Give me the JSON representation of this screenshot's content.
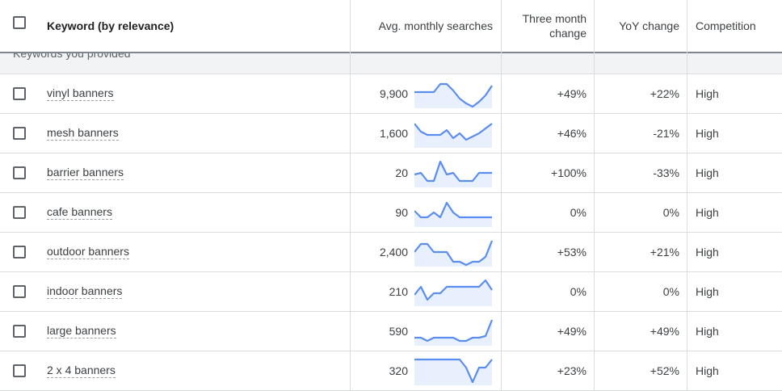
{
  "columns": {
    "keyword": "Keyword (by relevance)",
    "avg": "Avg. monthly searches",
    "three_month_line1": "Three month",
    "three_month_line2": "change",
    "yoy": "YoY change",
    "competition": "Competition"
  },
  "section_label": "Keywords you provided",
  "colors": {
    "spark_line": "#5b8def",
    "spark_fill": "#e8f0fe",
    "divider": "#dadce0"
  },
  "rows": [
    {
      "keyword": "vinyl banners",
      "avg": "9,900",
      "three_month": "+49%",
      "yoy": "+22%",
      "competition": "High",
      "trend": [
        7,
        7,
        7,
        7,
        2,
        2,
        6,
        11,
        14,
        16,
        13,
        9,
        3
      ]
    },
    {
      "keyword": "mesh banners",
      "avg": "1,600",
      "three_month": "+46%",
      "yoy": "-21%",
      "competition": "High",
      "trend": [
        2,
        7,
        9,
        9,
        9,
        6,
        11,
        8,
        12,
        10,
        8,
        5,
        2
      ]
    },
    {
      "keyword": "barrier banners",
      "avg": "20",
      "three_month": "+100%",
      "yoy": "-33%",
      "competition": "High",
      "trend": [
        9,
        8,
        13,
        13,
        1,
        9,
        8,
        13,
        13,
        13,
        8,
        8,
        8
      ]
    },
    {
      "keyword": "cafe banners",
      "avg": "90",
      "three_month": "0%",
      "yoy": "0%",
      "competition": "High",
      "trend": [
        7,
        11,
        11,
        8,
        11,
        2,
        8,
        11,
        11,
        11,
        11,
        11,
        11
      ]
    },
    {
      "keyword": "outdoor banners",
      "avg": "2,400",
      "three_month": "+53%",
      "yoy": "+21%",
      "competition": "High",
      "trend": [
        8,
        3,
        3,
        8,
        8,
        8,
        14,
        14,
        16,
        14,
        14,
        11,
        1
      ]
    },
    {
      "keyword": "indoor banners",
      "avg": "210",
      "three_month": "0%",
      "yoy": "0%",
      "competition": "High",
      "trend": [
        10,
        5,
        13,
        9,
        9,
        5,
        5,
        5,
        5,
        5,
        5,
        1,
        7
      ]
    },
    {
      "keyword": "large banners",
      "avg": "590",
      "three_month": "+49%",
      "yoy": "+49%",
      "competition": "High",
      "trend": [
        12,
        12,
        14,
        12,
        12,
        12,
        12,
        14,
        14,
        12,
        12,
        11,
        1
      ]
    },
    {
      "keyword": "2 x 4 banners",
      "avg": "320",
      "three_month": "+23%",
      "yoy": "+52%",
      "competition": "High",
      "trend": [
        1,
        1,
        1,
        1,
        1,
        1,
        1,
        1,
        6,
        15,
        6,
        6,
        1
      ]
    }
  ]
}
